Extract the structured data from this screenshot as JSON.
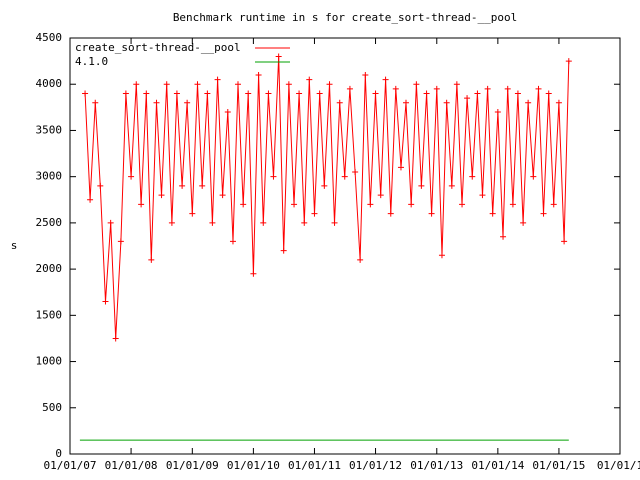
{
  "chart_data": {
    "type": "line",
    "title": "Benchmark runtime in s for create_sort-thread-__pool",
    "ylabel": "s",
    "xlim": [
      "2007-01-01",
      "2016-01-01"
    ],
    "xticks": [
      {
        "value": "2007-01-01",
        "label": "01/01/07"
      },
      {
        "value": "2008-01-01",
        "label": "01/01/08"
      },
      {
        "value": "2009-01-01",
        "label": "01/01/09"
      },
      {
        "value": "2010-01-01",
        "label": "01/01/10"
      },
      {
        "value": "2011-01-01",
        "label": "01/01/11"
      },
      {
        "value": "2012-01-01",
        "label": "01/01/12"
      },
      {
        "value": "2013-01-01",
        "label": "01/01/13"
      },
      {
        "value": "2014-01-01",
        "label": "01/01/14"
      },
      {
        "value": "2015-01-01",
        "label": "01/01/15"
      },
      {
        "value": "2016-01-01",
        "label": "01/01/1"
      }
    ],
    "ylim": [
      0,
      4500
    ],
    "yticks": [
      0,
      500,
      1000,
      1500,
      2000,
      2500,
      3000,
      3500,
      4000,
      4500
    ],
    "legend": "top-left",
    "series": [
      {
        "name": "create_sort-thread-__pool",
        "color": "#ff0000",
        "marker": "+",
        "x": [
          "2007-04-01",
          "2007-05-01",
          "2007-06-01",
          "2007-07-01",
          "2007-08-01",
          "2007-09-01",
          "2007-10-01",
          "2007-11-01",
          "2007-12-01",
          "2008-01-01",
          "2008-02-01",
          "2008-03-01",
          "2008-04-01",
          "2008-05-01",
          "2008-06-01",
          "2008-07-01",
          "2008-08-01",
          "2008-09-01",
          "2008-10-01",
          "2008-11-01",
          "2008-12-01",
          "2009-01-01",
          "2009-02-01",
          "2009-03-01",
          "2009-04-01",
          "2009-05-01",
          "2009-06-01",
          "2009-07-01",
          "2009-08-01",
          "2009-09-01",
          "2009-10-01",
          "2009-11-01",
          "2009-12-01",
          "2010-01-01",
          "2010-02-01",
          "2010-03-01",
          "2010-04-01",
          "2010-05-01",
          "2010-06-01",
          "2010-07-01",
          "2010-08-01",
          "2010-09-01",
          "2010-10-01",
          "2010-11-01",
          "2010-12-01",
          "2011-01-01",
          "2011-02-01",
          "2011-03-01",
          "2011-04-01",
          "2011-05-01",
          "2011-06-01",
          "2011-07-01",
          "2011-08-01",
          "2011-09-01",
          "2011-10-01",
          "2011-11-01",
          "2011-12-01",
          "2012-01-01",
          "2012-02-01",
          "2012-03-01",
          "2012-04-01",
          "2012-05-01",
          "2012-06-01",
          "2012-07-01",
          "2012-08-01",
          "2012-09-01",
          "2012-10-01",
          "2012-11-01",
          "2012-12-01",
          "2013-01-01",
          "2013-02-01",
          "2013-03-01",
          "2013-04-01",
          "2013-05-01",
          "2013-06-01",
          "2013-07-01",
          "2013-08-01",
          "2013-09-01",
          "2013-10-01",
          "2013-11-01",
          "2013-12-01",
          "2014-01-01",
          "2014-02-01",
          "2014-03-01",
          "2014-04-01",
          "2014-05-01",
          "2014-06-01",
          "2014-07-01",
          "2014-08-01",
          "2014-09-01",
          "2014-10-01",
          "2014-11-01",
          "2014-12-01",
          "2015-01-01",
          "2015-02-01",
          "2015-03-01"
        ],
        "values": [
          3900,
          2750,
          3800,
          2900,
          1650,
          2500,
          1250,
          2300,
          3900,
          3000,
          4000,
          2700,
          3900,
          2100,
          3800,
          2800,
          4000,
          2500,
          3900,
          2900,
          3800,
          2600,
          4000,
          2900,
          3900,
          2500,
          4050,
          2800,
          3700,
          2300,
          4000,
          2700,
          3900,
          1950,
          4100,
          2500,
          3900,
          3000,
          4300,
          2200,
          4000,
          2700,
          3900,
          2500,
          4050,
          2600,
          3900,
          2900,
          4000,
          2500,
          3800,
          3000,
          3950,
          3050,
          2100,
          4100,
          2700,
          3900,
          2800,
          4050,
          2600,
          3950,
          3100,
          3800,
          2700,
          4000,
          2900,
          3900,
          2600,
          3950,
          2150,
          3800,
          2900,
          4000,
          2700,
          3850,
          3000,
          3900,
          2800,
          3950,
          2600,
          3700,
          2350,
          3950,
          2700,
          3900,
          2500,
          3800,
          3000,
          3950,
          2600,
          3900,
          2700,
          3800,
          2300,
          4250
        ]
      },
      {
        "name": "4.1.0",
        "color": "#00a000",
        "x": [
          "2007-03-01",
          "2015-03-01"
        ],
        "values": [
          150,
          150
        ]
      }
    ]
  }
}
